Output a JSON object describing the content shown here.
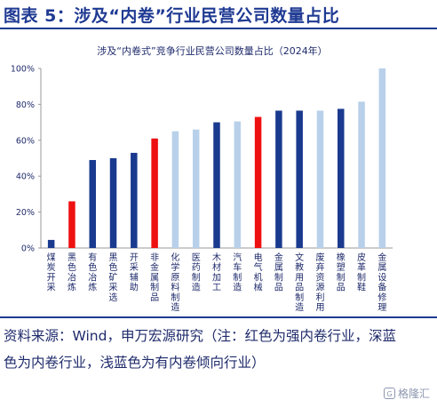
{
  "figure": {
    "title": "图表 5：涉及“内卷”行业民营公司数量占比",
    "source_note": "资料来源：Wind，申万宏源研究（注：红色为强内卷行业，深蓝色为内卷行业，浅蓝色为有内卷倾向行业）",
    "watermark": "格隆汇"
  },
  "colors": {
    "strong": "#ee1111",
    "involution": "#1a3a8f",
    "tendency": "#b8d0ea",
    "text": "#1f2b6b"
  },
  "chart_data": {
    "type": "bar",
    "title": "涉及“内卷式”竞争行业民营公司数量占比（2024年）",
    "ylim": [
      0,
      100
    ],
    "ytick_labels": [
      "0%",
      "20%",
      "40%",
      "60%",
      "80%",
      "100%"
    ],
    "grid": false,
    "legend": "none",
    "categories": [
      "煤炭开采",
      "黑色冶炼",
      "有色冶炼",
      "黑色矿采选",
      "开采辅助",
      "非金属制品",
      "化学原料制造",
      "医药制造",
      "木材加工",
      "汽车制造",
      "电气机械",
      "金属制品",
      "文教用品制造",
      "废弃资源利用",
      "橡塑制品",
      "皮革制鞋",
      "金属设备修理"
    ],
    "values": [
      4.5,
      26,
      49,
      50,
      53,
      61,
      65,
      66,
      70,
      70.5,
      73,
      76.5,
      76.5,
      76.5,
      77.5,
      81.5,
      100
    ],
    "classes": [
      "involution",
      "strong",
      "involution",
      "involution",
      "involution",
      "strong",
      "tendency",
      "tendency",
      "involution",
      "tendency",
      "strong",
      "involution",
      "involution",
      "tendency",
      "involution",
      "tendency",
      "tendency"
    ]
  }
}
